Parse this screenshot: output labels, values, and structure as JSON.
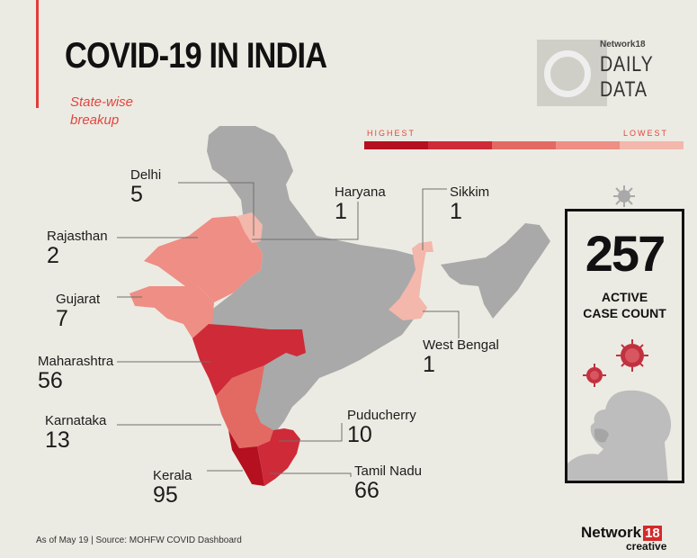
{
  "header": {
    "title": "COVID-19 IN INDIA",
    "subtitle_line1": "State-wise",
    "subtitle_line2": "breakup"
  },
  "logo": {
    "network": "Network18",
    "line1": "DAILY",
    "line2": "DATA"
  },
  "scale": {
    "high_label": "HIGHEST",
    "low_label": "LOWEST",
    "colors": [
      "#b5101f",
      "#cf2a38",
      "#e36a63",
      "#ee8e85",
      "#f3b7ac"
    ]
  },
  "states": [
    {
      "name": "Delhi",
      "value": "5"
    },
    {
      "name": "Rajasthan",
      "value": "2"
    },
    {
      "name": "Gujarat",
      "value": "7"
    },
    {
      "name": "Maharashtra",
      "value": "56"
    },
    {
      "name": "Karnataka",
      "value": "13"
    },
    {
      "name": "Kerala",
      "value": "95"
    },
    {
      "name": "Haryana",
      "value": "1"
    },
    {
      "name": "Sikkim",
      "value": "1"
    },
    {
      "name": "West Bengal",
      "value": "1"
    },
    {
      "name": "Puducherry",
      "value": "10"
    },
    {
      "name": "Tamil Nadu",
      "value": "66"
    }
  ],
  "active": {
    "count": "257",
    "label_line1": "ACTIVE",
    "label_line2": "CASE COUNT"
  },
  "footer": {
    "source": "As of May 19 | Source: MOHFW COVID Dashboard"
  },
  "brand": {
    "network": "Network",
    "num": "18",
    "creative": "creative"
  },
  "colors": {
    "accent": "#e1463f",
    "map_gray": "#a9a9a9",
    "background": "#ecebe3"
  }
}
